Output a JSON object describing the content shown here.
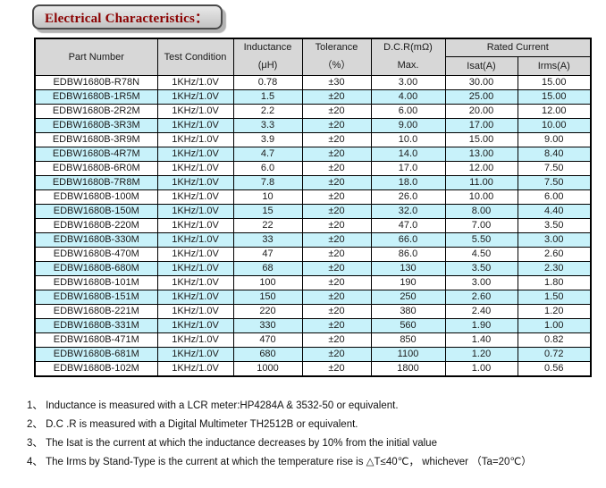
{
  "title": "Electrical Characteristics：",
  "table": {
    "headers": {
      "part_number": "Part Number",
      "test_condition": "Test Condition",
      "inductance_line1": "Inductance",
      "inductance_line2": "(μH)",
      "tolerance_line1": "Tolerance",
      "tolerance_line2": "（%）",
      "dcr_line1": "D.C.R(mΩ)",
      "dcr_line2": "Max.",
      "rated_current": "Rated Current",
      "isat": "Isat(A)",
      "irms": "Irms(A)"
    },
    "column_names": [
      "part-number-cell",
      "test-condition-cell",
      "inductance-cell",
      "tolerance-cell",
      "dcr-cell",
      "isat-cell",
      "irms-cell"
    ],
    "rows": [
      [
        "EDBW1680B-R78N",
        "1KHz/1.0V",
        "0.78",
        "±30",
        "3.00",
        "30.00",
        "15.00"
      ],
      [
        "EDBW1680B-1R5M",
        "1KHz/1.0V",
        "1.5",
        "±20",
        "4.00",
        "25.00",
        "15.00"
      ],
      [
        "EDBW1680B-2R2M",
        "1KHz/1.0V",
        "2.2",
        "±20",
        "6.00",
        "20.00",
        "12.00"
      ],
      [
        "EDBW1680B-3R3M",
        "1KHz/1.0V",
        "3.3",
        "±20",
        "9.00",
        "17.00",
        "10.00"
      ],
      [
        "EDBW1680B-3R9M",
        "1KHz/1.0V",
        "3.9",
        "±20",
        "10.0",
        "15.00",
        "9.00"
      ],
      [
        "EDBW1680B-4R7M",
        "1KHz/1.0V",
        "4.7",
        "±20",
        "14.0",
        "13.00",
        "8.40"
      ],
      [
        "EDBW1680B-6R0M",
        "1KHz/1.0V",
        "6.0",
        "±20",
        "17.0",
        "12.00",
        "7.50"
      ],
      [
        "EDBW1680B-7R8M",
        "1KHz/1.0V",
        "7.8",
        "±20",
        "18.0",
        "11.00",
        "7.50"
      ],
      [
        "EDBW1680B-100M",
        "1KHz/1.0V",
        "10",
        "±20",
        "26.0",
        "10.00",
        "6.00"
      ],
      [
        "EDBW1680B-150M",
        "1KHz/1.0V",
        "15",
        "±20",
        "32.0",
        "8.00",
        "4.40"
      ],
      [
        "EDBW1680B-220M",
        "1KHz/1.0V",
        "22",
        "±20",
        "47.0",
        "7.00",
        "3.50"
      ],
      [
        "EDBW1680B-330M",
        "1KHz/1.0V",
        "33",
        "±20",
        "66.0",
        "5.50",
        "3.00"
      ],
      [
        "EDBW1680B-470M",
        "1KHz/1.0V",
        "47",
        "±20",
        "86.0",
        "4.50",
        "2.60"
      ],
      [
        "EDBW1680B-680M",
        "1KHz/1.0V",
        "68",
        "±20",
        "130",
        "3.50",
        "2.30"
      ],
      [
        "EDBW1680B-101M",
        "1KHz/1.0V",
        "100",
        "±20",
        "190",
        "3.00",
        "1.80"
      ],
      [
        "EDBW1680B-151M",
        "1KHz/1.0V",
        "150",
        "±20",
        "250",
        "2.60",
        "1.50"
      ],
      [
        "EDBW1680B-221M",
        "1KHz/1.0V",
        "220",
        "±20",
        "380",
        "2.40",
        "1.20"
      ],
      [
        "EDBW1680B-331M",
        "1KHz/1.0V",
        "330",
        "±20",
        "560",
        "1.90",
        "1.00"
      ],
      [
        "EDBW1680B-471M",
        "1KHz/1.0V",
        "470",
        "±20",
        "850",
        "1.40",
        "0.82"
      ],
      [
        "EDBW1680B-681M",
        "1KHz/1.0V",
        "680",
        "±20",
        "1100",
        "1.20",
        "0.72"
      ],
      [
        "EDBW1680B-102M",
        "1KHz/1.0V",
        "1000",
        "±20",
        "1800",
        "1.00",
        "0.56"
      ]
    ]
  },
  "notes": [
    "1、 Inductance is measured with a LCR meter:HP4284A & 3532-50 or equivalent.",
    "2、 D.C .R is measured with a Digital Multimeter TH2512B or equivalent.",
    "3、 The Isat is the current at which the inductance decreases by 10% from the initial value",
    "4、 The Irms by Stand-Type is the current at which the temperature rise is △T≤40℃， whichever （Ta=20℃）"
  ],
  "colors": {
    "title_text": "#8b0000",
    "header_bg": "#d7d7d7",
    "alt_row_bg": "#c8f2fa",
    "border": "#000000"
  }
}
